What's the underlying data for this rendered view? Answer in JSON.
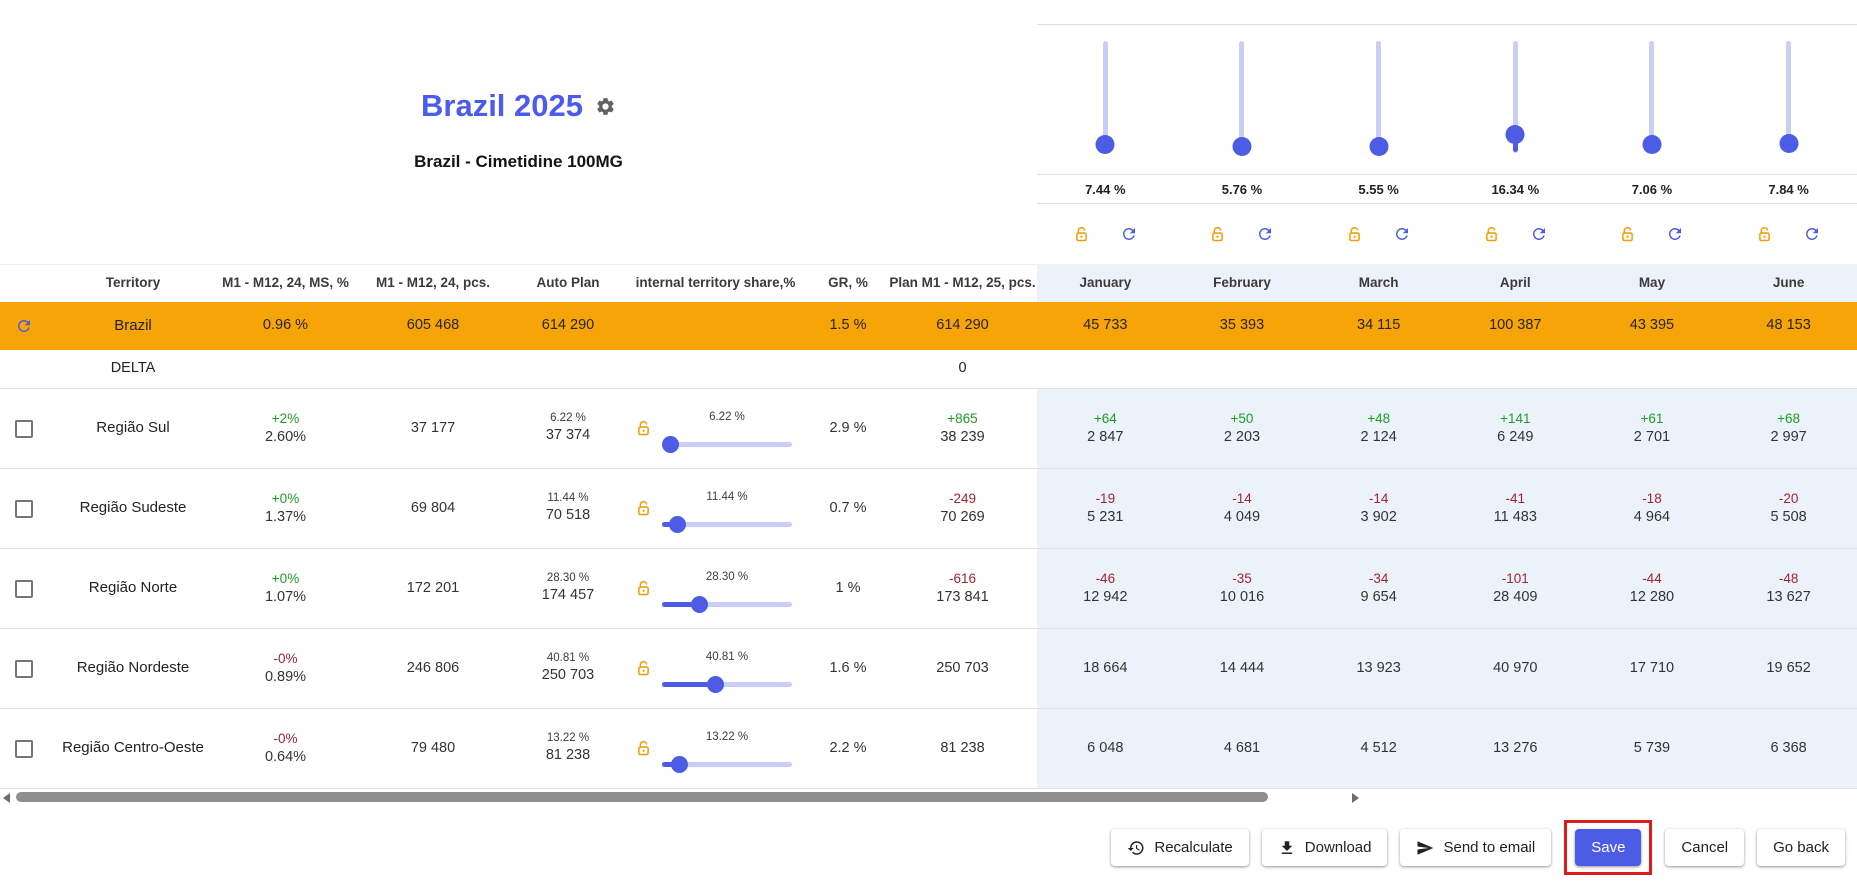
{
  "header": {
    "title": "Brazil 2025",
    "subtitle": "Brazil - Cimetidine 100MG",
    "gear_icon": "gear-icon"
  },
  "colors": {
    "positive": "#1f9d25",
    "negative": "#a02333",
    "accent_blue": "#4d5ce5",
    "row_highlight": "#f7a409",
    "title_blue": "#4b5bf0",
    "lock_orange": "#f59e0b",
    "annotation_red": "#e01b1b",
    "month_bg": "#ecf2f9"
  },
  "month_sliders": {
    "months": [
      "January",
      "February",
      "March",
      "April",
      "May",
      "June"
    ],
    "items": [
      {
        "month": "January",
        "value": "7.44 %",
        "fraction": 0.0744,
        "active": false
      },
      {
        "month": "February",
        "value": "5.76 %",
        "fraction": 0.0576,
        "active": false
      },
      {
        "month": "March",
        "value": "5.55 %",
        "fraction": 0.0555,
        "active": false
      },
      {
        "month": "April",
        "value": "16.34 %",
        "fraction": 0.1634,
        "active": true
      },
      {
        "month": "May",
        "value": "7.06 %",
        "fraction": 0.0706,
        "active": false
      },
      {
        "month": "June",
        "value": "7.84 %",
        "fraction": 0.0784,
        "active": false
      }
    ]
  },
  "table": {
    "columns": [
      "",
      "Territory",
      "M1 - M12, 24, MS, %",
      "M1 - M12, 24, pcs.",
      "Auto Plan",
      "internal territory share,%",
      "GR, %",
      "Plan M1 - M12, 25, pcs."
    ],
    "summary_row": {
      "territory": "Brazil",
      "ms": "0.96 %",
      "pcs": "605 468",
      "auto_plan": "614 290",
      "gr": "1.5 %",
      "plan": "614 290",
      "months": [
        "45 733",
        "35 393",
        "34 115",
        "100 387",
        "43 395",
        "48 153"
      ]
    },
    "delta_row": {
      "label": "DELTA",
      "plan_value": "0"
    },
    "rows": [
      {
        "territory": "Região Sul",
        "ms": {
          "delta": "+2%",
          "delta_tone": "positive",
          "value": "2.60%"
        },
        "pcs": "37 177",
        "auto_plan": {
          "pct": "6.22 %",
          "value": "37 374"
        },
        "share": {
          "pct": "6.22 %",
          "slider_value": 6.22
        },
        "gr": "2.9 %",
        "plan": {
          "delta": "+865",
          "delta_tone": "positive",
          "value": "38 239"
        },
        "months": [
          {
            "delta": "+64",
            "delta_tone": "positive",
            "value": "2 847"
          },
          {
            "delta": "+50",
            "delta_tone": "positive",
            "value": "2 203"
          },
          {
            "delta": "+48",
            "delta_tone": "positive",
            "value": "2 124"
          },
          {
            "delta": "+141",
            "delta_tone": "positive",
            "value": "6 249"
          },
          {
            "delta": "+61",
            "delta_tone": "positive",
            "value": "2 701"
          },
          {
            "delta": "+68",
            "delta_tone": "positive",
            "value": "2 997"
          }
        ]
      },
      {
        "territory": "Região Sudeste",
        "ms": {
          "delta": "+0%",
          "delta_tone": "positive",
          "value": "1.37%"
        },
        "pcs": "69 804",
        "auto_plan": {
          "pct": "11.44 %",
          "value": "70 518"
        },
        "share": {
          "pct": "11.44 %",
          "slider_value": 11.44
        },
        "gr": "0.7 %",
        "plan": {
          "delta": "-249",
          "delta_tone": "negative",
          "value": "70 269"
        },
        "months": [
          {
            "delta": "-19",
            "delta_tone": "negative",
            "value": "5 231"
          },
          {
            "delta": "-14",
            "delta_tone": "negative",
            "value": "4 049"
          },
          {
            "delta": "-14",
            "delta_tone": "negative",
            "value": "3 902"
          },
          {
            "delta": "-41",
            "delta_tone": "negative",
            "value": "11 483"
          },
          {
            "delta": "-18",
            "delta_tone": "negative",
            "value": "4 964"
          },
          {
            "delta": "-20",
            "delta_tone": "negative",
            "value": "5 508"
          }
        ]
      },
      {
        "territory": "Região Norte",
        "ms": {
          "delta": "+0%",
          "delta_tone": "positive",
          "value": "1.07%"
        },
        "pcs": "172 201",
        "auto_plan": {
          "pct": "28.30 %",
          "value": "174 457"
        },
        "share": {
          "pct": "28.30 %",
          "slider_value": 28.3
        },
        "gr": "1 %",
        "plan": {
          "delta": "-616",
          "delta_tone": "negative",
          "value": "173 841"
        },
        "months": [
          {
            "delta": "-46",
            "delta_tone": "negative",
            "value": "12 942"
          },
          {
            "delta": "-35",
            "delta_tone": "negative",
            "value": "10 016"
          },
          {
            "delta": "-34",
            "delta_tone": "negative",
            "value": "9 654"
          },
          {
            "delta": "-101",
            "delta_tone": "negative",
            "value": "28 409"
          },
          {
            "delta": "-44",
            "delta_tone": "negative",
            "value": "12 280"
          },
          {
            "delta": "-48",
            "delta_tone": "negative",
            "value": "13 627"
          }
        ]
      },
      {
        "territory": "Região Nordeste",
        "ms": {
          "delta": "-0%",
          "delta_tone": "negative",
          "value": "0.89%"
        },
        "pcs": "246 806",
        "auto_plan": {
          "pct": "40.81 %",
          "value": "250 703"
        },
        "share": {
          "pct": "40.81 %",
          "slider_value": 40.81
        },
        "gr": "1.6 %",
        "plan": {
          "delta": null,
          "delta_tone": null,
          "value": "250 703"
        },
        "months": [
          {
            "delta": null,
            "delta_tone": null,
            "value": "18 664"
          },
          {
            "delta": null,
            "delta_tone": null,
            "value": "14 444"
          },
          {
            "delta": null,
            "delta_tone": null,
            "value": "13 923"
          },
          {
            "delta": null,
            "delta_tone": null,
            "value": "40 970"
          },
          {
            "delta": null,
            "delta_tone": null,
            "value": "17 710"
          },
          {
            "delta": null,
            "delta_tone": null,
            "value": "19 652"
          }
        ]
      },
      {
        "territory": "Região Centro-Oeste",
        "ms": {
          "delta": "-0%",
          "delta_tone": "negative",
          "value": "0.64%"
        },
        "pcs": "79 480",
        "auto_plan": {
          "pct": "13.22 %",
          "value": "81 238"
        },
        "share": {
          "pct": "13.22 %",
          "slider_value": 13.22
        },
        "gr": "2.2 %",
        "plan": {
          "delta": null,
          "delta_tone": null,
          "value": "81 238"
        },
        "months": [
          {
            "delta": null,
            "delta_tone": null,
            "value": "6 048"
          },
          {
            "delta": null,
            "delta_tone": null,
            "value": "4 681"
          },
          {
            "delta": null,
            "delta_tone": null,
            "value": "4 512"
          },
          {
            "delta": null,
            "delta_tone": null,
            "value": "13 276"
          },
          {
            "delta": null,
            "delta_tone": null,
            "value": "5 739"
          },
          {
            "delta": null,
            "delta_tone": null,
            "value": "6 368"
          }
        ]
      }
    ]
  },
  "footer": {
    "buttons": [
      {
        "label": "Recalculate",
        "icon": "history-icon",
        "variant": "default",
        "annotated": false
      },
      {
        "label": "Download",
        "icon": "download-icon",
        "variant": "default",
        "annotated": false
      },
      {
        "label": "Send to email",
        "icon": "send-icon",
        "variant": "default",
        "annotated": false
      },
      {
        "label": "Save",
        "icon": null,
        "variant": "primary",
        "annotated": true
      },
      {
        "label": "Cancel",
        "icon": null,
        "variant": "default",
        "annotated": false
      },
      {
        "label": "Go back",
        "icon": null,
        "variant": "default",
        "annotated": false
      }
    ]
  }
}
